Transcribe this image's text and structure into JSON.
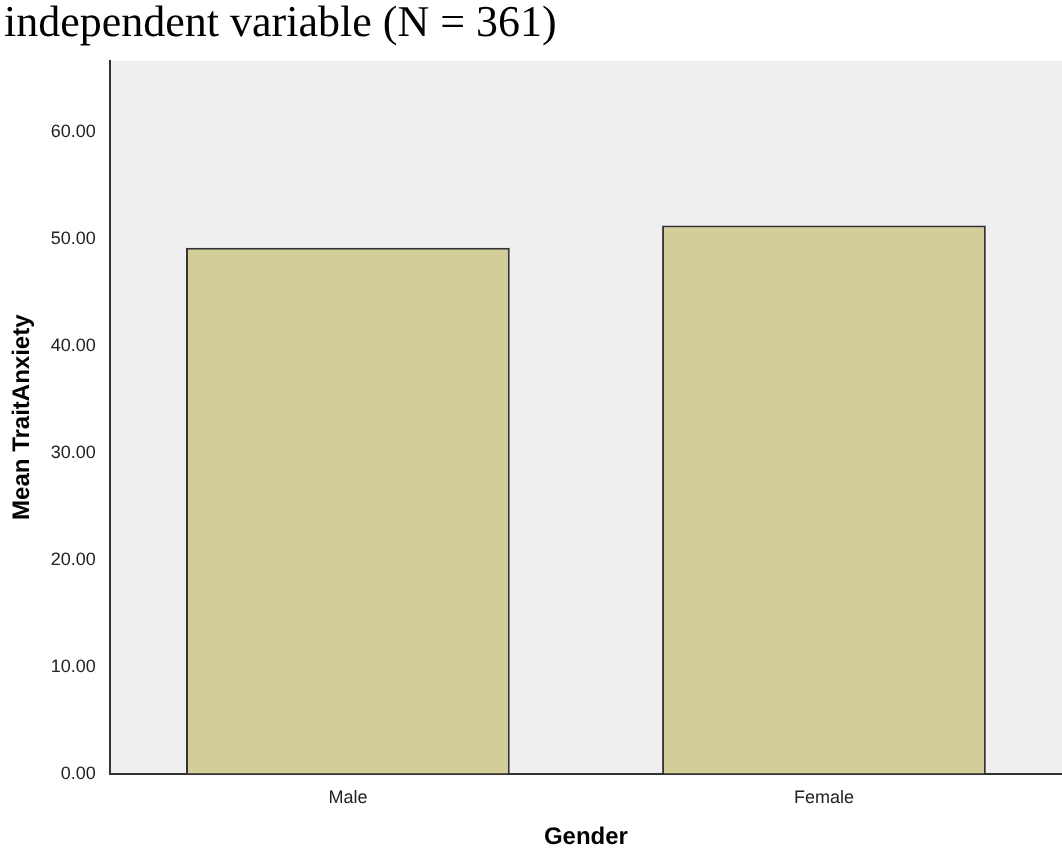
{
  "chart_data": {
    "type": "bar",
    "title": "independent variable (N = 361)",
    "xlabel": "Gender",
    "ylabel": "Mean TraitAnxiety",
    "categories": [
      "Male",
      "Female"
    ],
    "values": [
      49.2,
      51.3
    ],
    "color": "#d3ce97",
    "ylim": [
      0,
      66.7
    ],
    "yticks": [
      {
        "value": 0,
        "label": "0.00"
      },
      {
        "value": 10,
        "label": "10.00"
      },
      {
        "value": 20,
        "label": "20.00"
      },
      {
        "value": 30,
        "label": "30.00"
      },
      {
        "value": 40,
        "label": "40.00"
      },
      {
        "value": 50,
        "label": "50.00"
      },
      {
        "value": 60,
        "label": "60.00"
      }
    ],
    "grid": false,
    "legend": false
  }
}
